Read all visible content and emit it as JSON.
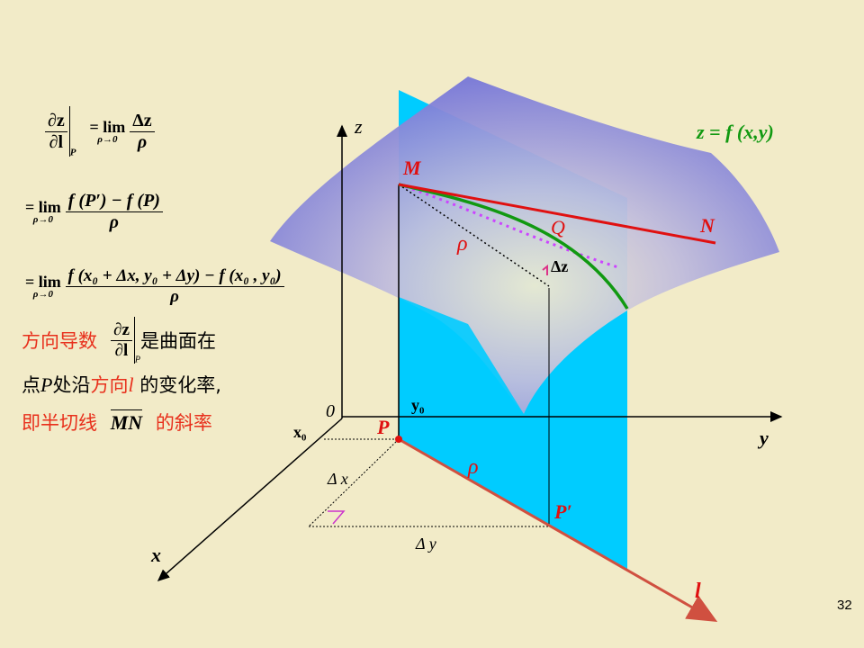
{
  "formulas": {
    "line1": {
      "lhs_num": "∂z",
      "lhs_den": "∂l",
      "lhs_sub": "P",
      "eq": "= lim",
      "lim_sub": "ρ→0",
      "rhs_num": "Δz",
      "rhs_den": "ρ"
    },
    "line2": {
      "eq": "= lim",
      "lim_sub": "ρ→0",
      "num": "f (P′) − f (P)",
      "den": "ρ"
    },
    "line3": {
      "eq": "= lim",
      "lim_sub": "ρ→0",
      "num": "f (x₀ + Δx, y₀ + Δy) − f (x₀ , y₀)",
      "den": "ρ"
    }
  },
  "text": {
    "line1_a": "方向导数",
    "line1_frac_num": "∂z",
    "line1_frac_den": "∂l",
    "line1_frac_sub": "P",
    "line1_b": "是曲面在",
    "line2_a": "点",
    "line2_p": "P",
    "line2_b": "处沿",
    "line2_c": "方向",
    "line2_l": "l",
    "line2_d": " 的变化率,",
    "line3_a": "即半切线",
    "line3_mn": "MN",
    "line3_b": "的斜率"
  },
  "diagram": {
    "surface_label": "z = f (x,y)",
    "axis_z": "z",
    "axis_y": "y",
    "axis_x": "x",
    "origin": "0",
    "x0": "x₀",
    "y0": "y₀",
    "point_M": "M",
    "point_N": "N",
    "point_Q": "Q",
    "point_P": "P",
    "point_P_prime": "P′",
    "dir_l": "l",
    "rho_upper": "ρ",
    "rho_lower": "ρ",
    "delta_z": "Δz",
    "delta_x": "Δ x",
    "delta_y": "Δ y"
  },
  "colors": {
    "background": "#f2ebc8",
    "plane": "#00ccff",
    "surface": "#7f7fd6",
    "tangent": "#e01010",
    "curve": "#119911",
    "direction": "#d05040",
    "dotted_curve": "#cc44ff"
  },
  "page_number": "32"
}
